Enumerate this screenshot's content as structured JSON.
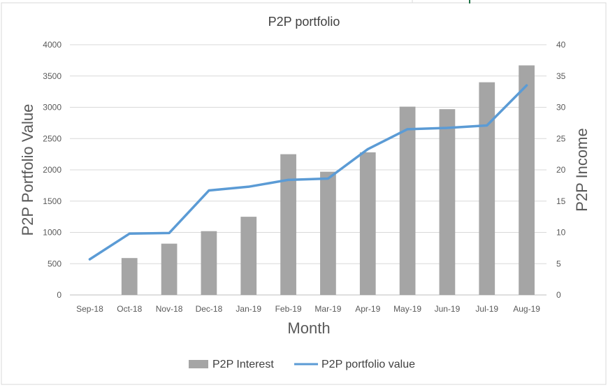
{
  "chart_data": {
    "type": "bar",
    "title": "P2P portfolio",
    "xlabel": "Month",
    "ylabel": "P2P Portfolio Value",
    "y2label": "P2P Income",
    "categories": [
      "Sep-18",
      "Oct-18",
      "Nov-18",
      "Dec-18",
      "Jan-19",
      "Feb-19",
      "Mar-19",
      "Apr-19",
      "May-19",
      "Jun-19",
      "Jul-19",
      "Aug-19"
    ],
    "ylim": [
      0,
      4000
    ],
    "y2lim": [
      0,
      40
    ],
    "yticks": [
      "0",
      "500",
      "1000",
      "1500",
      "2000",
      "2500",
      "3000",
      "3500",
      "4000"
    ],
    "y2ticks": [
      "0",
      "5",
      "10",
      "15",
      "20",
      "25",
      "30",
      "35",
      "40"
    ],
    "grid": true,
    "legend_position": "bottom",
    "series": [
      {
        "name": "P2P Interest",
        "type": "bar",
        "axis": "right",
        "color": "#A5A5A5",
        "values": [
          0,
          5.9,
          8.2,
          10.2,
          12.5,
          22.5,
          19.7,
          22.8,
          30.1,
          29.7,
          34.0,
          36.7
        ]
      },
      {
        "name": "P2P portfolio value",
        "type": "line",
        "axis": "left",
        "color": "#5B9BD5",
        "values": [
          570,
          980,
          990,
          1670,
          1730,
          1840,
          1860,
          2330,
          2650,
          2670,
          2710,
          3350
        ]
      }
    ]
  }
}
